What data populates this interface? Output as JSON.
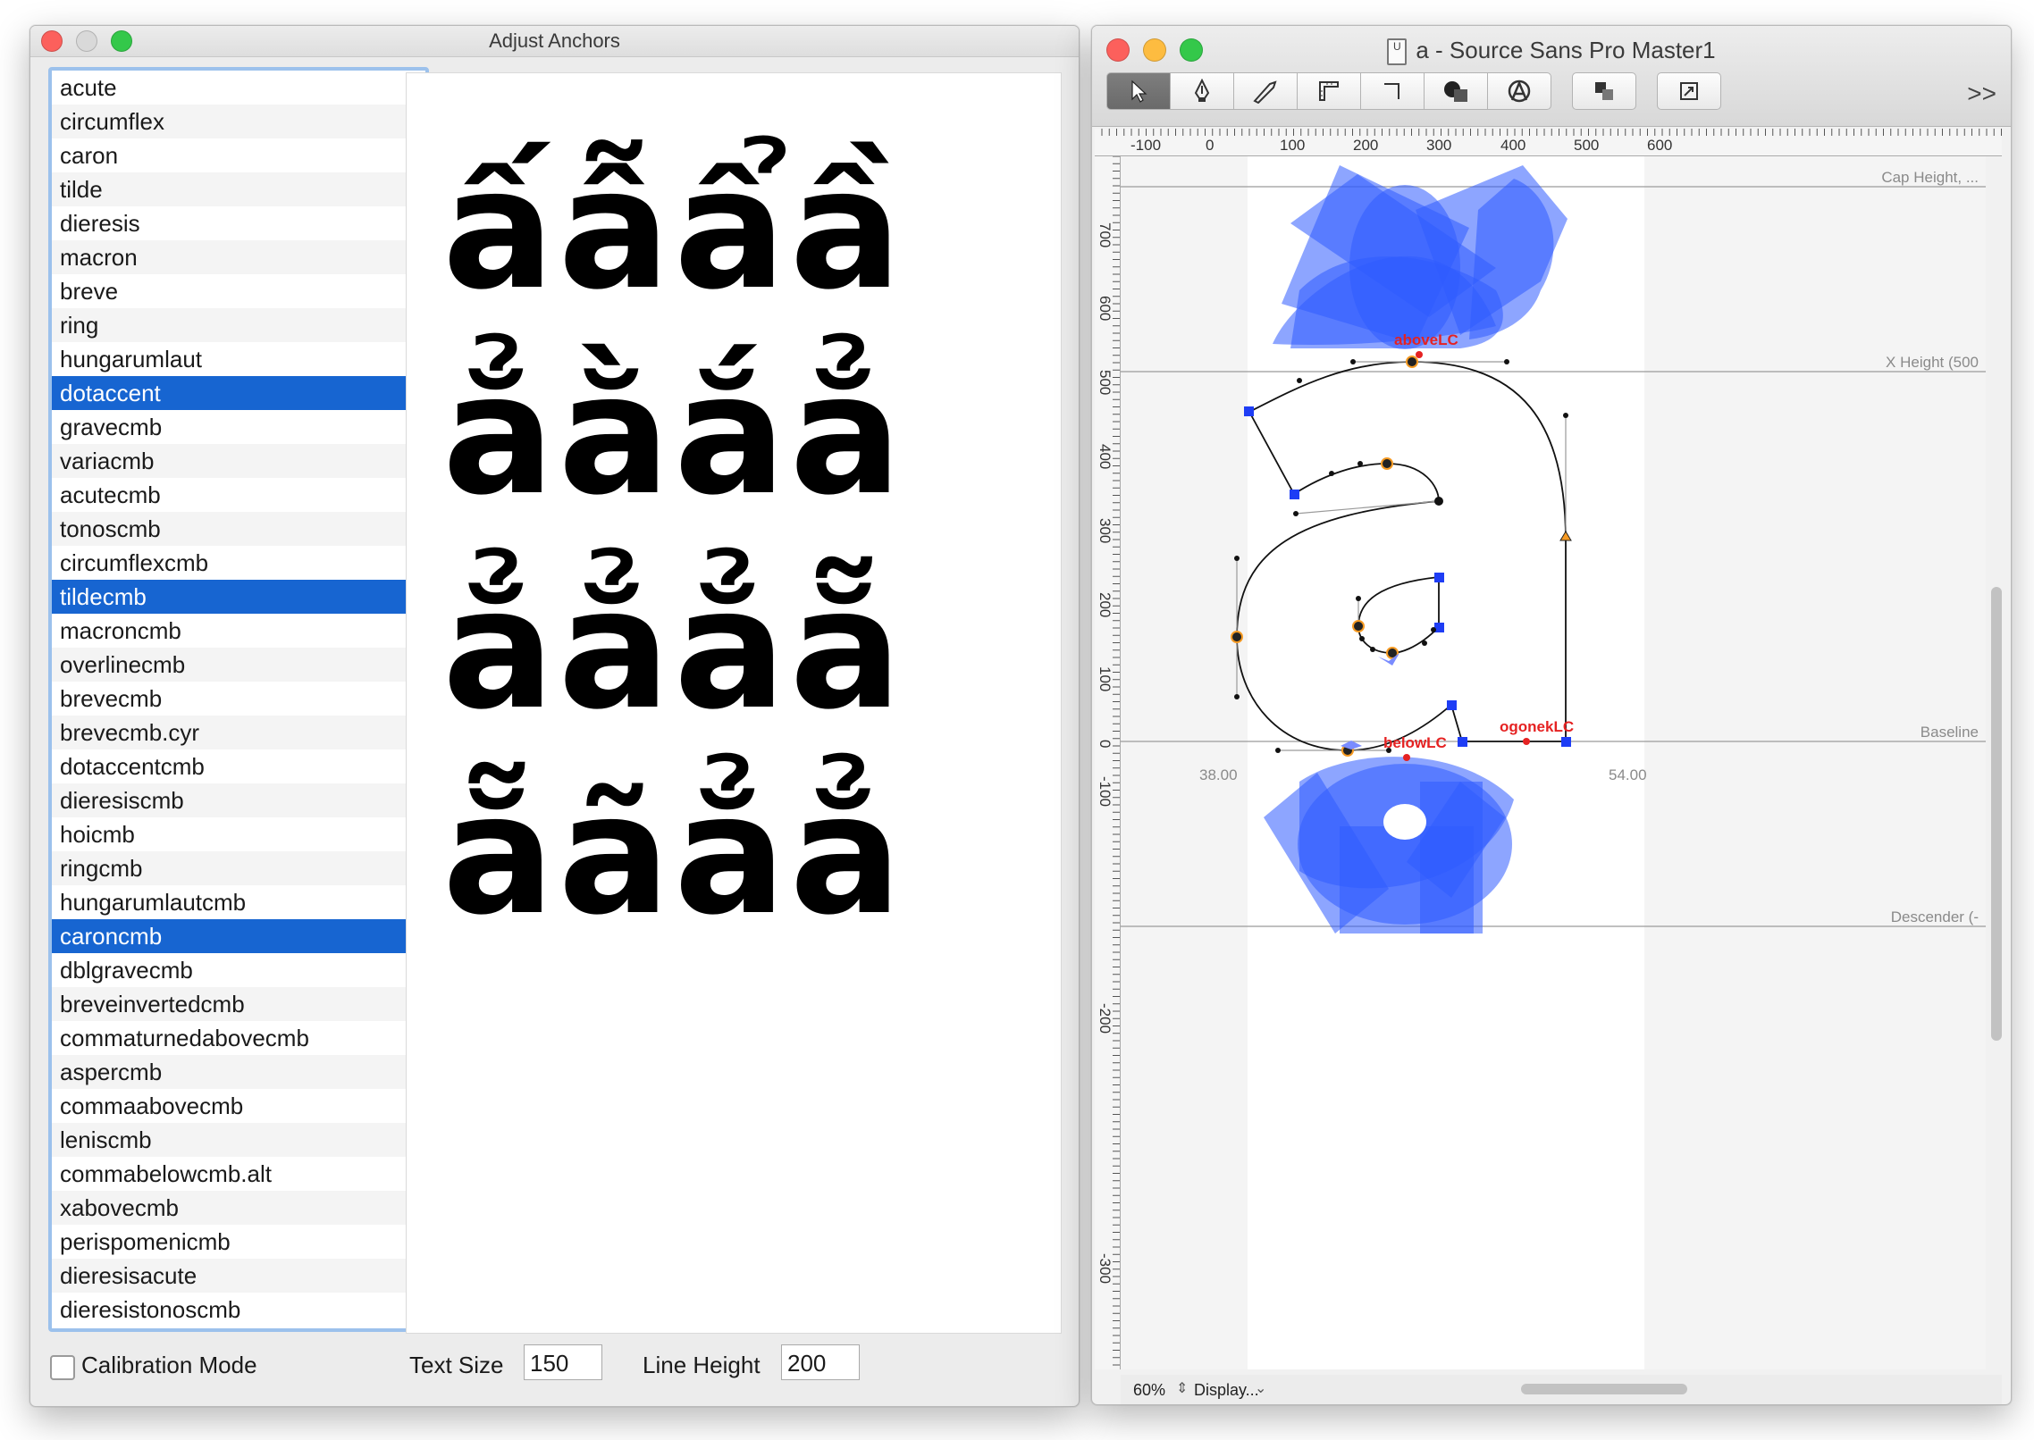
{
  "adjust_window": {
    "title": "Adjust Anchors",
    "glyph_list": [
      {
        "name": "acute",
        "selected": false
      },
      {
        "name": "circumflex",
        "selected": false
      },
      {
        "name": "caron",
        "selected": false
      },
      {
        "name": "tilde",
        "selected": false
      },
      {
        "name": "dieresis",
        "selected": false
      },
      {
        "name": "macron",
        "selected": false
      },
      {
        "name": "breve",
        "selected": false
      },
      {
        "name": "ring",
        "selected": false
      },
      {
        "name": "hungarumlaut",
        "selected": false
      },
      {
        "name": "dotaccent",
        "selected": true
      },
      {
        "name": "gravecmb",
        "selected": false
      },
      {
        "name": "variacmb",
        "selected": false
      },
      {
        "name": "acutecmb",
        "selected": false
      },
      {
        "name": "tonoscmb",
        "selected": false
      },
      {
        "name": "circumflexcmb",
        "selected": false
      },
      {
        "name": "tildecmb",
        "selected": true
      },
      {
        "name": "macroncmb",
        "selected": false
      },
      {
        "name": "overlinecmb",
        "selected": false
      },
      {
        "name": "brevecmb",
        "selected": false
      },
      {
        "name": "brevecmb.cyr",
        "selected": false
      },
      {
        "name": "dotaccentcmb",
        "selected": false
      },
      {
        "name": "dieresiscmb",
        "selected": false
      },
      {
        "name": "hoicmb",
        "selected": false
      },
      {
        "name": "ringcmb",
        "selected": false
      },
      {
        "name": "hungarumlautcmb",
        "selected": false
      },
      {
        "name": "caroncmb",
        "selected": true
      },
      {
        "name": "dblgravecmb",
        "selected": false
      },
      {
        "name": "breveinvertedcmb",
        "selected": false
      },
      {
        "name": "commaturnedabovecmb",
        "selected": false
      },
      {
        "name": "aspercmb",
        "selected": false
      },
      {
        "name": "commaabovecmb",
        "selected": false
      },
      {
        "name": "leniscmb",
        "selected": false
      },
      {
        "name": "commabelowcmb.alt",
        "selected": false
      },
      {
        "name": "xabovecmb",
        "selected": false
      },
      {
        "name": "perispomenicmb",
        "selected": false
      },
      {
        "name": "dieresisacute",
        "selected": false
      },
      {
        "name": "dieresistonoscmb",
        "selected": false
      }
    ],
    "preview_lines": [
      "ấẫẩầ",
      "ẳằắẳ",
      "ẳẳẳẵ",
      "ẵãẳẳ"
    ],
    "calibration_label": "Calibration Mode",
    "calibration_checked": false,
    "text_size_label": "Text Size",
    "text_size_value": "150",
    "line_height_label": "Line Height",
    "line_height_value": "200"
  },
  "glyph_window": {
    "doc_badge": "U",
    "title": "a - Source Sans Pro Master1",
    "tools": [
      "pointer-tool",
      "pen-tool",
      "knife-tool",
      "measure-tool",
      "corner-tool",
      "shapes-tool",
      "anchor-tool",
      "layers-tool",
      "transform-tool"
    ],
    "overflow_label": ">>",
    "ruler_h": [
      "-100",
      "0",
      "100",
      "200",
      "300",
      "400",
      "500",
      "600"
    ],
    "ruler_v": [
      "700",
      "600",
      "500",
      "400",
      "300",
      "200",
      "100",
      "0",
      "-100",
      "-200",
      "-300"
    ],
    "guide_labels": {
      "cap_height": "Cap Height, ...",
      "x_height": "X Height (500",
      "baseline": "Baseline",
      "descender": "Descender (-"
    },
    "anchors": [
      "aboveLC",
      "belowLC",
      "ogonekLC"
    ],
    "sidebearings": {
      "left": "38.00",
      "right": "54.00"
    },
    "zoom": "60%",
    "display_label": "Display...",
    "colors": {
      "accent_blue": "#2f5bff",
      "selection": "#1765d1",
      "anchor_red": "#e52222",
      "node_orange": "#f59a23"
    }
  }
}
